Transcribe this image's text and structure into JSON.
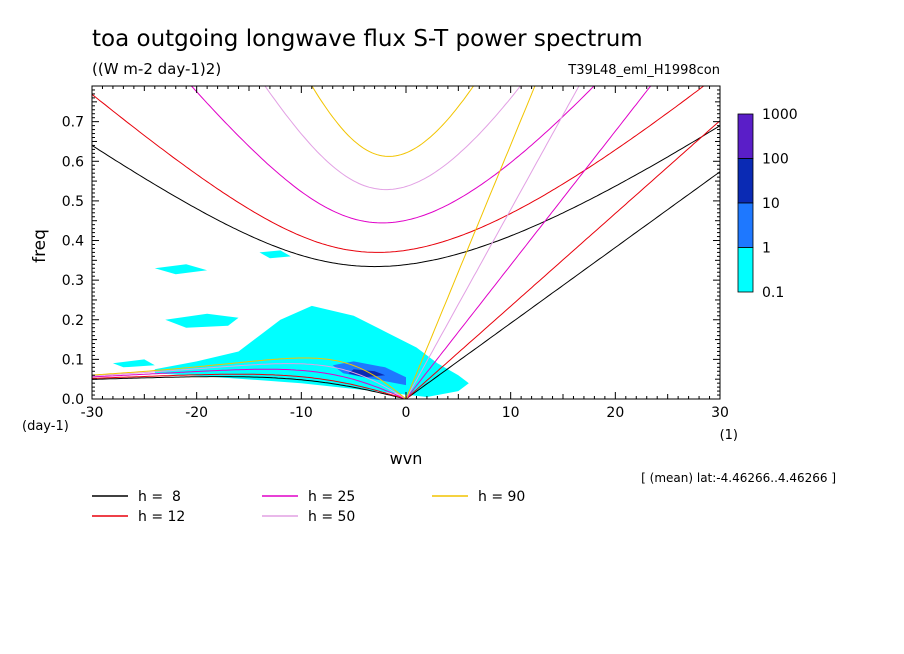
{
  "chart_data": {
    "type": "line",
    "title": "toa outgoing longwave flux S-T power spectrum",
    "subtitle": "((W m-2 day-1)2)",
    "run_label": "T39L48_eml_H1998con",
    "xlabel": "wvn",
    "ylabel": "freq",
    "x_unit": "(1)",
    "y_unit": "(day-1)",
    "xlim": [
      -30,
      30
    ],
    "ylim": [
      0,
      0.79
    ],
    "x_ticks": [
      -30,
      -20,
      -10,
      0,
      10,
      20,
      30
    ],
    "x_tick_labels": [
      "-30",
      "-20",
      "-10",
      "0",
      "10",
      "20",
      "30"
    ],
    "y_ticks": [
      0.0,
      0.1,
      0.2,
      0.3,
      0.4,
      0.5,
      0.6,
      0.7
    ],
    "y_tick_labels": [
      "0.0",
      "0.1",
      "0.2",
      "0.3",
      "0.4",
      "0.5",
      "0.6",
      "0.7"
    ],
    "footnote": "[ (mean) lat:-4.46266..4.46266 ]",
    "grid": false,
    "legend_position": "bottom-left",
    "series": [
      {
        "name": "h =  8",
        "h": 8,
        "color": "#000000"
      },
      {
        "name": "h = 12",
        "h": 12,
        "color": "#e8000b"
      },
      {
        "name": "h = 25",
        "h": 25,
        "color": "#e000c8"
      },
      {
        "name": "h = 50",
        "h": 50,
        "color": "#e2a0e4"
      },
      {
        "name": "h = 90",
        "h": 90,
        "color": "#f2c400"
      }
    ],
    "contour_levels": {
      "labels": [
        "1000",
        "100",
        "10",
        "1",
        "0.1"
      ],
      "colors": [
        "#5a1ec8",
        "#0a2ab4",
        "#1e78ff",
        "#00ffff"
      ]
    },
    "contours": [
      {
        "level": "0.1-1",
        "color": "#00ffff",
        "points": [
          [
            -24,
            0.075
          ],
          [
            -20,
            0.095
          ],
          [
            -16,
            0.12
          ],
          [
            -14,
            0.16
          ],
          [
            -12,
            0.2
          ],
          [
            -9,
            0.235
          ],
          [
            -5,
            0.21
          ],
          [
            -2,
            0.17
          ],
          [
            1,
            0.13
          ],
          [
            3,
            0.09
          ],
          [
            5,
            0.06
          ],
          [
            6,
            0.04
          ],
          [
            5,
            0.02
          ],
          [
            2,
            0.005
          ],
          [
            -3,
            0.02
          ],
          [
            -10,
            0.04
          ],
          [
            -18,
            0.055
          ],
          [
            -24,
            0.065
          ]
        ]
      },
      {
        "level": "0.1-1",
        "color": "#00ffff",
        "points": [
          [
            -23,
            0.2
          ],
          [
            -19,
            0.215
          ],
          [
            -16,
            0.205
          ],
          [
            -17,
            0.185
          ],
          [
            -21,
            0.18
          ]
        ]
      },
      {
        "level": "0.1-1",
        "color": "#00ffff",
        "points": [
          [
            -24,
            0.33
          ],
          [
            -21,
            0.34
          ],
          [
            -19,
            0.325
          ],
          [
            -22,
            0.315
          ]
        ]
      },
      {
        "level": "0.1-1",
        "color": "#00ffff",
        "points": [
          [
            -28,
            0.09
          ],
          [
            -25,
            0.1
          ],
          [
            -24,
            0.085
          ],
          [
            -27,
            0.08
          ]
        ]
      },
      {
        "level": "0.1-1",
        "color": "#00ffff",
        "points": [
          [
            -9,
            0.13
          ],
          [
            -6,
            0.135
          ],
          [
            -4,
            0.12
          ],
          [
            -7,
            0.115
          ]
        ]
      },
      {
        "level": "0.1-1",
        "color": "#00ffff",
        "points": [
          [
            -14,
            0.37
          ],
          [
            -12,
            0.375
          ],
          [
            -11,
            0.36
          ],
          [
            -13,
            0.355
          ]
        ]
      },
      {
        "level": "1-10",
        "color": "#1e78ff",
        "points": [
          [
            -7,
            0.085
          ],
          [
            -5,
            0.095
          ],
          [
            -2,
            0.08
          ],
          [
            0,
            0.055
          ],
          [
            0,
            0.035
          ],
          [
            -3,
            0.05
          ],
          [
            -6,
            0.065
          ]
        ]
      },
      {
        "level": "10-100",
        "color": "#0a2ab4",
        "points": [
          [
            -5,
            0.075
          ],
          [
            -3,
            0.07
          ],
          [
            -2,
            0.06
          ],
          [
            -4,
            0.055
          ],
          [
            -5.5,
            0.065
          ]
        ]
      }
    ]
  }
}
